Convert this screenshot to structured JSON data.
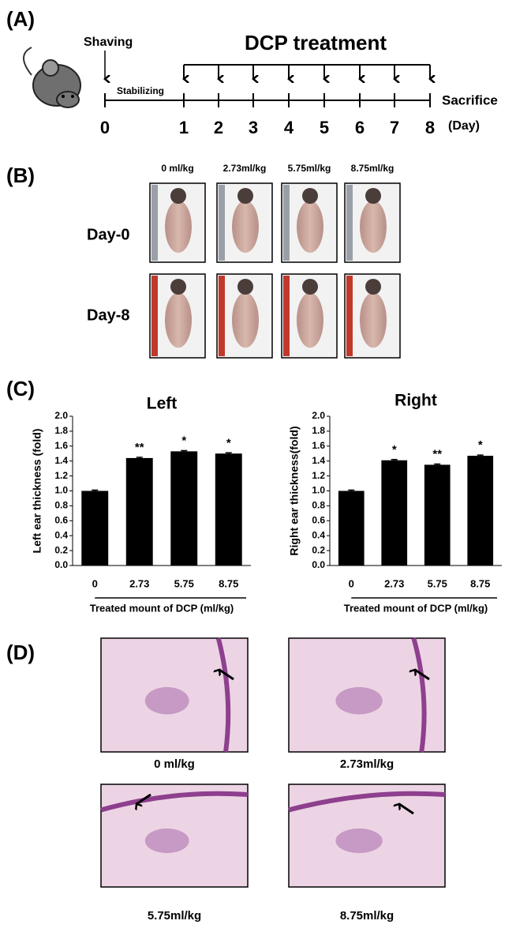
{
  "panel_a": {
    "label": "(A)",
    "shaving": "Shaving",
    "stabilizing": "Stabilizing",
    "treatment": "DCP treatment",
    "sacrifice": "Sacrifice",
    "unit": "(Day)",
    "days": [
      0,
      1,
      2,
      3,
      4,
      5,
      6,
      7,
      8
    ]
  },
  "panel_b": {
    "label": "(B)",
    "doses": [
      "0 ml/kg",
      "2.73ml/kg",
      "5.75ml/kg",
      "8.75ml/kg"
    ],
    "rows": [
      "Day-0",
      "Day-8"
    ]
  },
  "panel_c": {
    "label": "(C)"
  },
  "chart_data": [
    {
      "type": "bar",
      "title": "Left",
      "y_label": "Left ear thickness (fold)",
      "x_label": "Treated mount of DCP (ml/kg)",
      "categories": [
        "0",
        "2.73",
        "5.75",
        "8.75"
      ],
      "values": [
        1.0,
        1.44,
        1.53,
        1.5
      ],
      "errors": [
        0.01,
        0.01,
        0.01,
        0.01
      ],
      "annotations": [
        null,
        "**",
        "*",
        "*"
      ],
      "color": "#000000",
      "ylim": [
        0,
        2
      ],
      "yticks": [
        {
          "value": 0,
          "label": "0.0"
        },
        {
          "value": 0.2,
          "label": "0.2"
        },
        {
          "value": 0.4,
          "label": "0.4"
        },
        {
          "value": 0.6,
          "label": "0.6"
        },
        {
          "value": 0.8,
          "label": "0.8"
        },
        {
          "value": 1,
          "label": "1.0"
        },
        {
          "value": 1.2,
          "label": "1.2"
        },
        {
          "value": 1.4,
          "label": "1.4"
        },
        {
          "value": 1.6,
          "label": "1.6"
        },
        {
          "value": 1.8,
          "label": "1.8"
        },
        {
          "value": 2,
          "label": "2.0"
        }
      ]
    },
    {
      "type": "bar",
      "title": "Right",
      "y_label": "Right ear thickness(fold)",
      "x_label": "Treated mount of DCP (ml/kg)",
      "categories": [
        "0",
        "2.73",
        "5.75",
        "8.75"
      ],
      "values": [
        1.0,
        1.41,
        1.35,
        1.47
      ],
      "errors": [
        0.01,
        0.01,
        0.01,
        0.01
      ],
      "annotations": [
        null,
        "*",
        "**",
        "*"
      ],
      "color": "#000000",
      "ylim": [
        0,
        2
      ],
      "yticks": [
        {
          "value": 0,
          "label": "0.0"
        },
        {
          "value": 0.2,
          "label": "0.2"
        },
        {
          "value": 0.4,
          "label": "0.4"
        },
        {
          "value": 0.6,
          "label": "0.6"
        },
        {
          "value": 0.8,
          "label": "0.8"
        },
        {
          "value": 1,
          "label": "1.0"
        },
        {
          "value": 1.2,
          "label": "1.2"
        },
        {
          "value": 1.4,
          "label": "1.4"
        },
        {
          "value": 1.6,
          "label": "1.6"
        },
        {
          "value": 1.8,
          "label": "1.8"
        },
        {
          "value": 2,
          "label": "2.0"
        }
      ]
    }
  ],
  "panel_d": {
    "label": "(D)",
    "captions": [
      "0 ml/kg",
      "2.73ml/kg",
      "5.75ml/kg",
      "8.75ml/kg"
    ]
  }
}
